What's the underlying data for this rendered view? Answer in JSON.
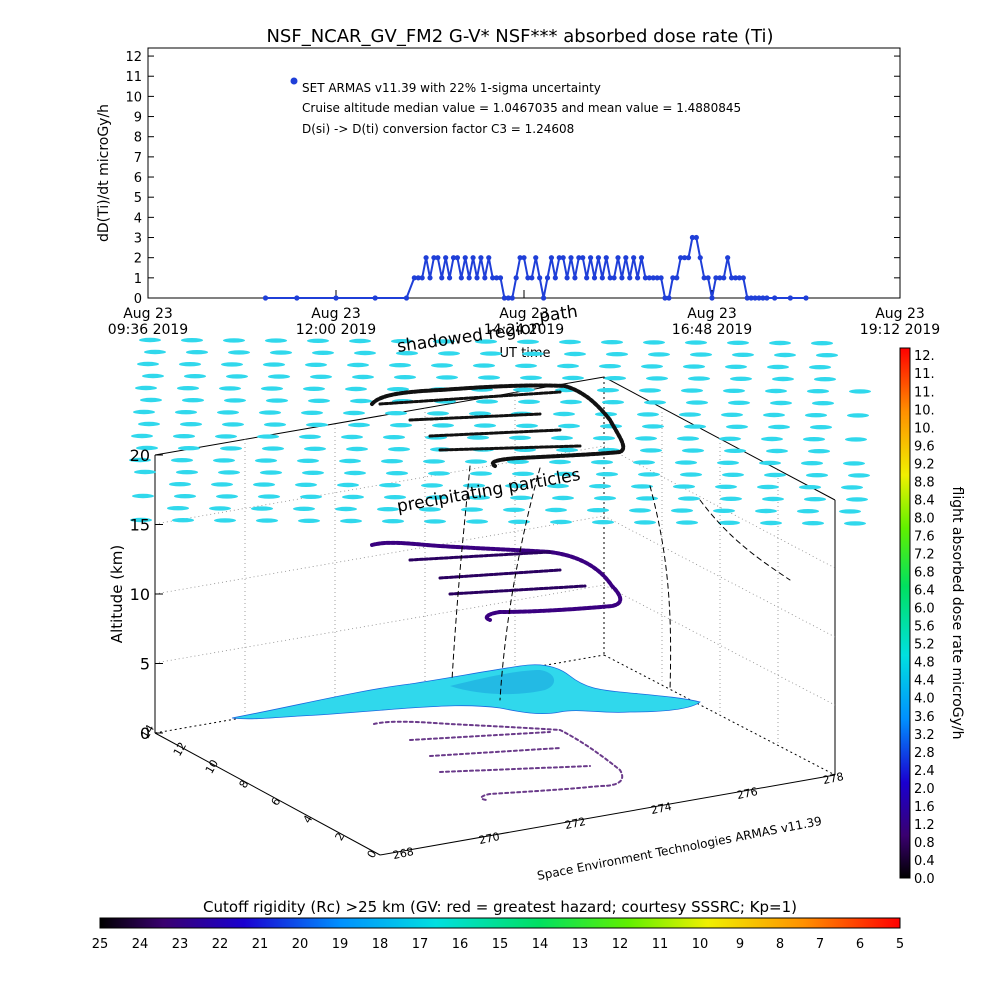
{
  "title": "NSF_NCAR_GV_FM2 G-V* NSF*** absorbed dose rate (Ti)",
  "top_chart": {
    "ylabel": "dD(Ti)/dt microGy/h",
    "xlabel": "UT time",
    "y_ticks": [
      "0",
      "1",
      "2",
      "3",
      "4",
      "5",
      "6",
      "7",
      "8",
      "9",
      "10",
      "11",
      "12"
    ],
    "x_ticks": [
      {
        "line1": "Aug 23",
        "line2": "09:36 2019"
      },
      {
        "line1": "Aug 23",
        "line2": "12:00 2019"
      },
      {
        "line1": "Aug 23",
        "line2": "14:24 2019"
      },
      {
        "line1": "Aug 23",
        "line2": "16:48 2019"
      },
      {
        "line1": "Aug 23",
        "line2": "19:12 2019"
      }
    ],
    "annotation_legend": "SET ARMAS v11.39 with 22% 1-sigma uncertainty",
    "annotation_median": "Cruise altitude median value = 1.0467035 and mean value = 1.4880845",
    "annotation_factor": "D(si) -> D(ti) conversion factor C3 = 1.24608",
    "series_color": "#1f3fd8"
  },
  "chart_data": {
    "type": "line",
    "title": "NSF_NCAR_GV_FM2 G-V* NSF*** absorbed dose rate (Ti)",
    "xlabel": "UT time",
    "ylabel": "dD(Ti)/dt microGy/h",
    "ylim": [
      0,
      12
    ],
    "x_unit": "UT hours on Aug 23 2019",
    "xlim": [
      9.6,
      19.2
    ],
    "series": [
      {
        "name": "SET ARMAS v11.39 with 22% 1-sigma uncertainty",
        "x": [
          11.1,
          11.5,
          12.0,
          12.5,
          12.9,
          13.0,
          13.05,
          13.1,
          13.15,
          13.2,
          13.25,
          13.3,
          13.35,
          13.4,
          13.45,
          13.5,
          13.55,
          13.6,
          13.65,
          13.7,
          13.75,
          13.8,
          13.85,
          13.9,
          13.95,
          14.0,
          14.05,
          14.1,
          14.15,
          14.2,
          14.25,
          14.3,
          14.35,
          14.4,
          14.45,
          14.5,
          14.55,
          14.6,
          14.65,
          14.7,
          14.75,
          14.8,
          14.85,
          14.9,
          14.95,
          15.0,
          15.05,
          15.1,
          15.15,
          15.2,
          15.25,
          15.3,
          15.35,
          15.4,
          15.45,
          15.5,
          15.55,
          15.6,
          15.65,
          15.7,
          15.75,
          15.8,
          15.85,
          15.9,
          15.95,
          16.0,
          16.05,
          16.1,
          16.15,
          16.2,
          16.25,
          16.3,
          16.35,
          16.4,
          16.45,
          16.5,
          16.55,
          16.6,
          16.65,
          16.7,
          16.75,
          16.8,
          16.85,
          16.9,
          16.95,
          17.0,
          17.05,
          17.1,
          17.15,
          17.2,
          17.25,
          17.3,
          17.35,
          17.4,
          17.45,
          17.5,
          17.6,
          17.8,
          18.0
        ],
        "y": [
          0,
          0,
          0,
          0,
          0,
          1,
          1,
          1,
          2,
          1,
          2,
          2,
          1,
          2,
          1,
          2,
          2,
          1,
          2,
          1,
          2,
          1,
          2,
          1,
          2,
          1,
          1,
          1,
          0,
          0,
          0,
          1,
          2,
          2,
          1,
          1,
          2,
          1,
          0,
          1,
          2,
          1,
          2,
          2,
          1,
          2,
          1,
          2,
          2,
          1,
          2,
          1,
          2,
          1,
          2,
          1,
          1,
          2,
          1,
          2,
          1,
          2,
          1,
          2,
          1,
          1,
          1,
          1,
          1,
          0,
          0,
          1,
          1,
          2,
          2,
          2,
          3,
          3,
          2,
          1,
          1,
          0,
          1,
          1,
          1,
          2,
          1,
          1,
          1,
          1,
          0,
          0,
          0,
          0,
          0,
          0,
          0,
          0,
          0
        ]
      }
    ]
  },
  "globe": {
    "x_axis_label": "Space Environment Technologies ARMAS v11.39",
    "x_ticks": [
      "268",
      "270",
      "272",
      "274",
      "276",
      "278"
    ],
    "y_ticks": [
      "0",
      "2",
      "4",
      "6",
      "8",
      "10",
      "12",
      "14"
    ],
    "z_label": "Altitude (km)",
    "z_ticks": [
      "0",
      "5",
      "10",
      "15",
      "20"
    ],
    "text_shadowed_region": "shadowed region",
    "text_path": "path",
    "text_precip": "precipitating particles",
    "land_color": "#30d8ec",
    "grid_color": "#30d8ec"
  },
  "right_colorbar": {
    "label": "flight absorbed dose rate microGy/h",
    "ticks": [
      "0.0",
      "0.4",
      "0.8",
      "1.2",
      "1.6",
      "2.0",
      "2.4",
      "2.8",
      "3.2",
      "3.6",
      "4.0",
      "4.4",
      "4.8",
      "5.2",
      "5.6",
      "6.0",
      "6.4",
      "6.8",
      "7.2",
      "7.6",
      "8.0",
      "8.4",
      "8.8",
      "9.2",
      "9.6",
      "10.",
      "10.",
      "11.",
      "11.",
      "12."
    ]
  },
  "bottom_colorbar": {
    "label": "Cutoff rigidity (Rc) >25 km (GV: red = greatest hazard; courtesy SSSRC; Kp=1)",
    "ticks": [
      "25",
      "24",
      "23",
      "22",
      "21",
      "20",
      "19",
      "18",
      "17",
      "16",
      "15",
      "14",
      "13",
      "12",
      "11",
      "10",
      "9",
      "8",
      "7",
      "6",
      "5"
    ]
  }
}
